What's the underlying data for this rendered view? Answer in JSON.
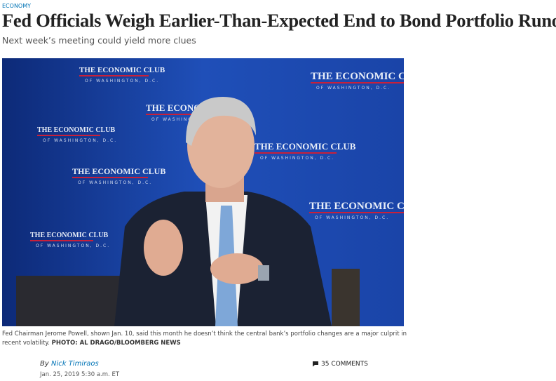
{
  "section": "ECONOMY",
  "headline": "Fed Officials Weigh Earlier-Than-Expected End to Bond Portfolio Runoff",
  "subheadline": "Next week’s meeting could yield more clues",
  "image": {
    "backdrop_title": "THE ECONOMIC CLUB",
    "backdrop_subtitle": "OF WASHINGTON, D.C."
  },
  "caption": {
    "text": "Fed Chairman Jerome Powell, shown Jan. 10, said this month he doesn’t think the central bank’s portfolio changes are a major culprit in recent volatility.",
    "credit": "PHOTO: AL DRAGO/BLOOMBERG NEWS"
  },
  "byline": {
    "prefix": "By",
    "author": "Nick Timiraos",
    "date": "Jan. 25, 2019 5:30 a.m. ET"
  },
  "comments": "35 COMMENTS"
}
